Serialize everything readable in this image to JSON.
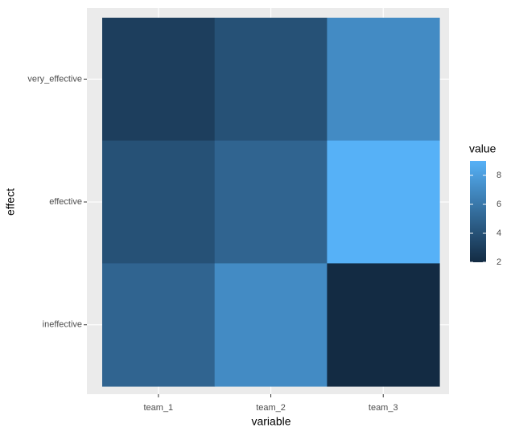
{
  "chart_data": {
    "type": "heatmap",
    "x_label": "variable",
    "y_label": "effect",
    "x_categories": [
      "team_1",
      "team_2",
      "team_3"
    ],
    "y_categories": [
      "very_effective",
      "effective",
      "ineffective"
    ],
    "values": [
      [
        3,
        4,
        7
      ],
      [
        4,
        5,
        9
      ],
      [
        5,
        7,
        2
      ]
    ],
    "legend_title": "value",
    "clim": [
      2,
      9
    ],
    "cticks": [
      2,
      4,
      6,
      8
    ],
    "colors": [
      "#132B43",
      "#56B1F7"
    ]
  }
}
